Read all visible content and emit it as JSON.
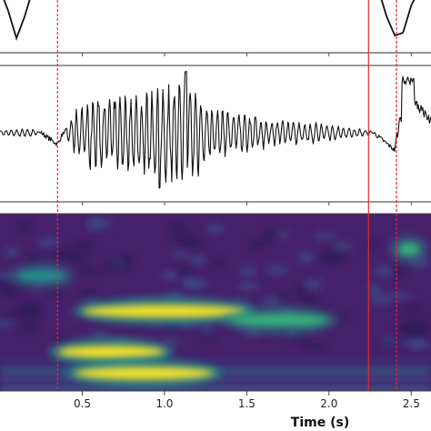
{
  "chart_data": [
    {
      "type": "line",
      "panel": "envelope",
      "x": [
        0.0,
        0.05,
        0.1,
        0.15,
        0.2,
        2.3,
        2.35,
        2.4,
        2.45,
        2.5,
        2.55,
        2.6
      ],
      "y": [
        1.0,
        0.6,
        0.1,
        0.5,
        1.0,
        1.0,
        0.5,
        0.15,
        0.2,
        0.7,
        1.0,
        1.0
      ],
      "xlim": [
        0.0,
        2.62
      ],
      "grid": false
    },
    {
      "type": "line",
      "panel": "signal",
      "x": [
        0.0,
        0.2,
        0.35,
        0.45,
        0.6,
        0.8,
        1.0,
        1.15,
        1.3,
        1.5,
        1.7,
        1.9,
        2.1,
        2.25,
        2.4,
        2.45,
        2.5,
        2.6
      ],
      "y": [
        0.05,
        0.1,
        -0.2,
        0.4,
        0.8,
        0.7,
        0.9,
        1.0,
        0.5,
        0.35,
        0.25,
        0.2,
        0.1,
        0.05,
        -0.3,
        0.9,
        0.8,
        0.3
      ],
      "xlim": [
        0.0,
        2.62
      ],
      "grid": false
    },
    {
      "type": "heatmap",
      "panel": "scalogram",
      "colormap": "viridis",
      "x": [
        0.0,
        0.2,
        0.4,
        0.6,
        0.8,
        1.0,
        1.2,
        1.4,
        1.6,
        1.8,
        2.0,
        2.2,
        2.4,
        2.6
      ],
      "bands": [
        {
          "x": [
            0.35,
            1.0
          ],
          "band": 0.78,
          "intensity": 1.0
        },
        {
          "x": [
            0.45,
            1.3
          ],
          "band": 0.9,
          "intensity": 0.95
        },
        {
          "x": [
            0.5,
            1.5
          ],
          "band": 0.55,
          "intensity": 1.0
        },
        {
          "x": [
            1.4,
            2.0
          ],
          "band": 0.6,
          "intensity": 0.6
        },
        {
          "x": [
            0.1,
            0.4
          ],
          "band": 0.35,
          "intensity": 0.45
        },
        {
          "x": [
            2.42,
            2.55
          ],
          "band": 0.2,
          "intensity": 0.55
        }
      ],
      "xlabel": "Time (s)",
      "xticks": [
        0.5,
        1.0,
        1.5,
        2.0,
        2.5
      ],
      "xtick_labels": [
        "0.5",
        "1.0",
        "1.5",
        "2.0",
        "2.5"
      ],
      "xlim": [
        0.0,
        2.62
      ]
    }
  ],
  "event_lines": [
    {
      "x": 0.35,
      "style": "dashed",
      "color": "#e8272a"
    },
    {
      "x": 2.24,
      "style": "solid",
      "color": "#e8272a"
    },
    {
      "x": 2.41,
      "style": "dashed",
      "color": "#e8272a"
    }
  ],
  "colors": {
    "line": "#111111",
    "event": "#e8272a",
    "frame": "#555555"
  }
}
